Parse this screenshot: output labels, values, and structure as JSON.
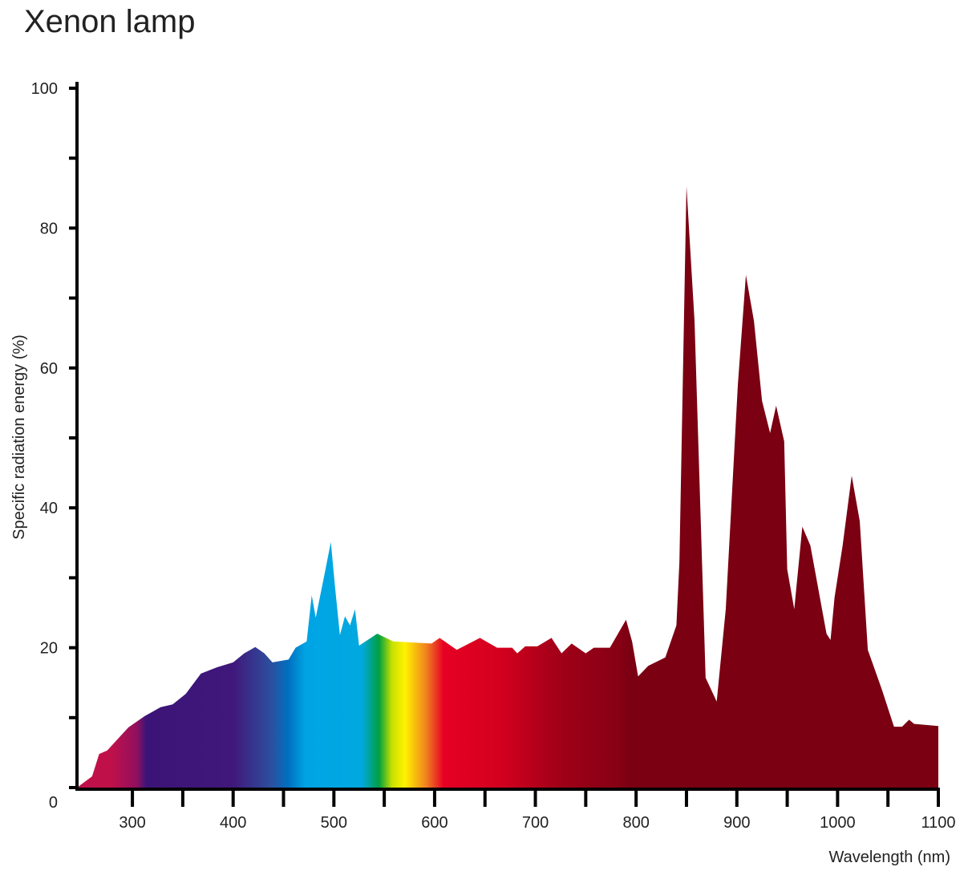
{
  "chart_data": {
    "type": "area",
    "title": "Xenon lamp",
    "x_label": "Wavelength (nm)",
    "y_label": "Specific radiation energy (%)",
    "x": [
      245,
      260,
      267,
      275,
      296,
      312,
      328,
      340,
      353,
      368,
      384,
      400,
      411,
      422,
      431,
      439,
      455,
      462,
      473,
      478,
      482,
      490,
      497,
      501,
      506,
      511,
      516,
      521,
      525,
      543,
      559,
      597,
      605,
      622,
      645,
      662,
      677,
      682,
      690,
      702,
      716,
      726,
      736,
      750,
      758,
      774,
      790,
      796,
      802,
      812,
      829,
      840,
      843,
      850,
      858,
      869,
      880,
      889,
      901,
      909,
      917,
      925,
      933,
      939,
      947,
      950,
      957,
      965,
      973,
      989,
      993,
      997,
      1005,
      1014,
      1022,
      1030,
      1044,
      1056,
      1064,
      1071,
      1076,
      1100
    ],
    "y": [
      0,
      1.6,
      4.8,
      5.3,
      8.6,
      10.2,
      11.5,
      11.9,
      13.4,
      16.3,
      17.2,
      17.9,
      19.2,
      20.1,
      19.2,
      17.9,
      18.3,
      20,
      20.9,
      27.5,
      24.3,
      30,
      35.1,
      28.9,
      21.8,
      24.5,
      23.2,
      25.5,
      20.3,
      22,
      20.9,
      20.6,
      21.4,
      19.7,
      21.4,
      20,
      20,
      19.2,
      20.2,
      20.2,
      21.4,
      19.2,
      20.6,
      19.2,
      20,
      20,
      24,
      20.9,
      15.9,
      17.4,
      18.6,
      23.2,
      32.3,
      86,
      66.7,
      15.7,
      12.3,
      25.5,
      57.6,
      73.3,
      66.7,
      55.3,
      50.7,
      54.6,
      49.5,
      31.2,
      25.5,
      37.3,
      34.6,
      22,
      21.1,
      27.2,
      34.6,
      44.6,
      38.1,
      19.7,
      14,
      8.7,
      8.7,
      9.7,
      9.1,
      8.8
    ],
    "xlim": [
      245,
      1100
    ],
    "ylim": [
      0,
      100
    ],
    "xticks": [
      300,
      400,
      500,
      600,
      700,
      800,
      900,
      1000,
      1100
    ],
    "xminor_ticks": [
      350,
      450,
      550,
      650,
      750,
      850,
      950,
      1050
    ],
    "yticks": [
      0,
      20,
      40,
      60,
      80,
      100
    ],
    "yminor_ticks": [
      10,
      30,
      50,
      70,
      90
    ],
    "color": "#7a0012",
    "axis_color": "#000000"
  }
}
